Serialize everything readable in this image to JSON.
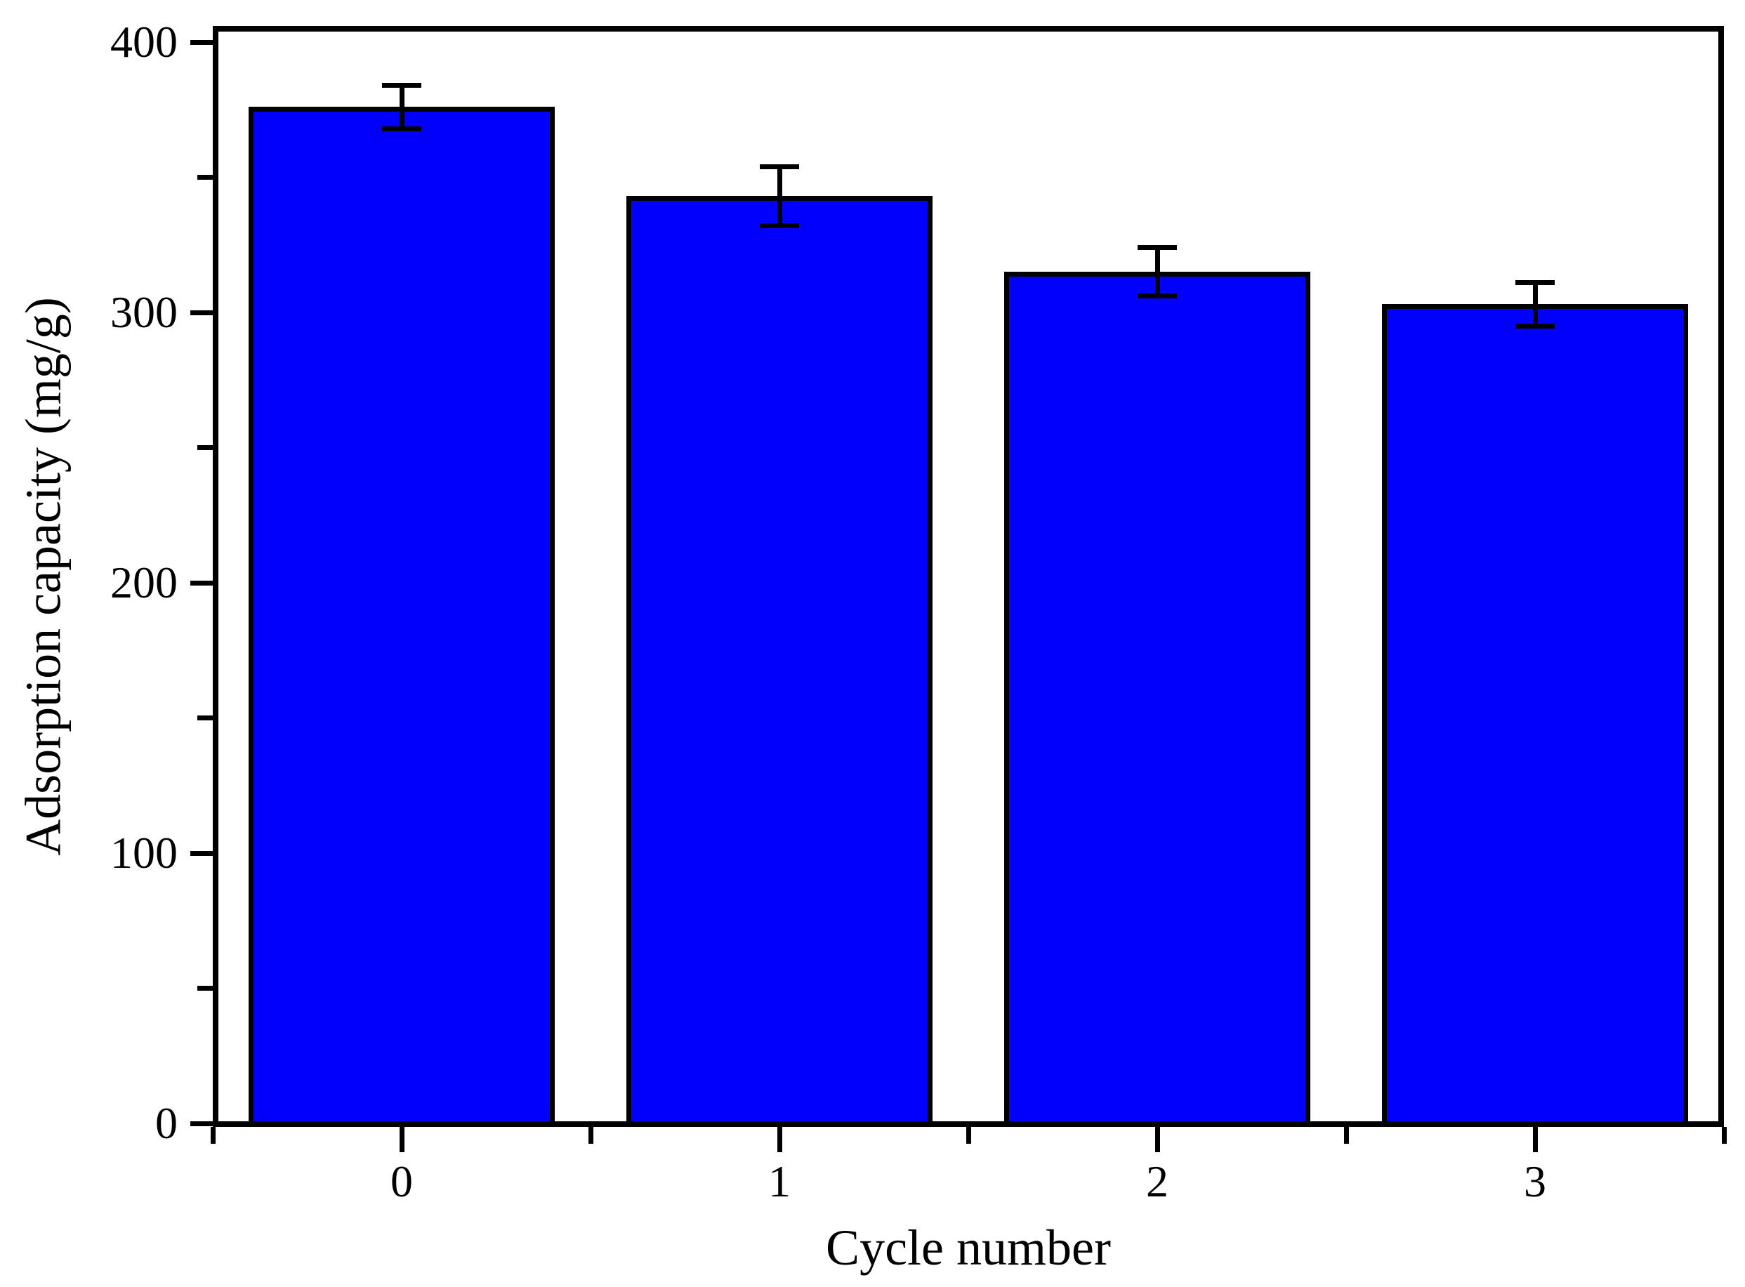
{
  "chart_data": {
    "type": "bar",
    "xlabel": "Cycle number",
    "ylabel": "Adsorption capacity (mg/g)",
    "categories": [
      "0",
      "1",
      "2",
      "3"
    ],
    "values": [
      376,
      343,
      315,
      303
    ],
    "errors": [
      8,
      11,
      9,
      8
    ],
    "bar_color": "#0000FC",
    "bar_edge_color": "#000000",
    "error_bar_color": "#000000",
    "axis_color": "#000000",
    "background_color": "#ffffff",
    "ylim": [
      0,
      405
    ],
    "y_major_ticks": [
      0,
      100,
      200,
      300,
      400
    ],
    "y_tick_labels": [
      "0",
      "100",
      "200",
      "300",
      "400"
    ],
    "y_minor_ticks": [
      50,
      150,
      250,
      350
    ],
    "x_tick_labels": [
      "0",
      "1",
      "2",
      "3"
    ],
    "grid": false,
    "legend": "none"
  }
}
